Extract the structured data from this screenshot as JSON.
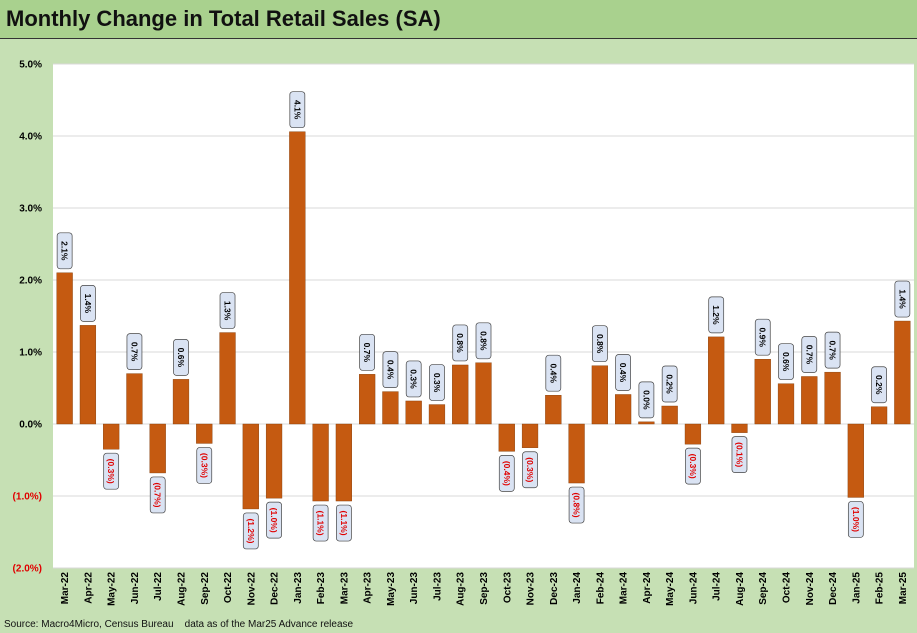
{
  "header": {
    "title": "Monthly Change in Total Retail Sales (SA)"
  },
  "footer": {
    "source": "Source: Macro4Micro, Census Bureau    data as of the Mar25 Advance release"
  },
  "colors": {
    "bar": "#c55a11",
    "plot_bg": "#ffffff",
    "outer_bg": "#c6e0b4",
    "title_bg": "#a9d18e",
    "label_bg": "#dae3f3",
    "negative_text": "#e00000",
    "positive_text": "#000000"
  },
  "chart_data": {
    "type": "bar",
    "title": "Monthly Change in Total Retail Sales (SA)",
    "xlabel": "",
    "ylabel": "",
    "ylim": [
      -2.0,
      5.0
    ],
    "yticks": [
      5.0,
      4.0,
      3.0,
      2.0,
      1.0,
      0.0,
      -1.0,
      -2.0
    ],
    "ytick_labels": [
      "5.0%",
      "4.0%",
      "3.0%",
      "2.0%",
      "1.0%",
      "0.0%",
      "(1.0%)",
      "(2.0%)"
    ],
    "grid": true,
    "categories": [
      "Mar-22",
      "Apr-22",
      "May-22",
      "Jun-22",
      "Jul-22",
      "Aug-22",
      "Sep-22",
      "Oct-22",
      "Nov-22",
      "Dec-22",
      "Jan-23",
      "Feb-23",
      "Mar-23",
      "Apr-23",
      "May-23",
      "Jun-23",
      "Jul-23",
      "Aug-23",
      "Sep-23",
      "Oct-23",
      "Nov-23",
      "Dec-23",
      "Jan-24",
      "Feb-24",
      "Mar-24",
      "Apr-24",
      "May-24",
      "Jun-24",
      "Jul-24",
      "Aug-24",
      "Sep-24",
      "Oct-24",
      "Nov-24",
      "Dec-24",
      "Jan-25",
      "Feb-25",
      "Mar-25"
    ],
    "values": [
      2.1,
      1.37,
      -0.35,
      0.7,
      -0.68,
      0.62,
      -0.27,
      1.27,
      -1.18,
      -1.03,
      4.06,
      -1.07,
      -1.07,
      0.69,
      0.45,
      0.32,
      0.27,
      0.82,
      0.85,
      -0.38,
      -0.33,
      0.4,
      -0.82,
      0.81,
      0.41,
      0.03,
      0.25,
      -0.28,
      1.21,
      -0.12,
      0.9,
      0.56,
      0.66,
      0.72,
      -1.02,
      0.24,
      1.43
    ],
    "data_labels": [
      "2.1%",
      "1.4%",
      "(0.3%)",
      "0.7%",
      "(0.7%)",
      "0.6%",
      "(0.3%)",
      "1.3%",
      "(1.2%)",
      "(1.0%)",
      "4.1%",
      "(1.1%)",
      "(1.1%)",
      "0.7%",
      "0.4%",
      "0.3%",
      "0.3%",
      "0.8%",
      "0.8%",
      "(0.4%)",
      "(0.3%)",
      "0.4%",
      "(0.8%)",
      "0.8%",
      "0.4%",
      "0.0%",
      "0.2%",
      "(0.3%)",
      "1.2%",
      "(0.1%)",
      "0.9%",
      "0.6%",
      "0.7%",
      "0.7%",
      "(1.0%)",
      "0.2%",
      "1.4%"
    ]
  }
}
